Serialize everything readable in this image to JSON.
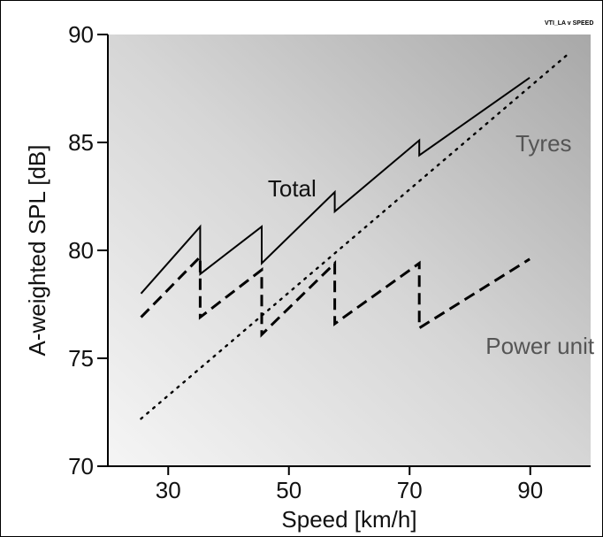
{
  "chart_data": {
    "type": "line",
    "tag": "VTI_LA v SPEED",
    "xlabel": "Speed [km/h]",
    "ylabel": "A-weighted SPL  [dB]",
    "xlim": [
      20,
      100
    ],
    "ylim": [
      70,
      90
    ],
    "x_ticks": [
      30,
      50,
      70,
      90
    ],
    "y_ticks": [
      70,
      75,
      80,
      85,
      90
    ],
    "grid": false,
    "series": [
      {
        "name": "Total",
        "style": "solid",
        "points": [
          [
            25.5,
            78.0
          ],
          [
            35.3,
            81.1
          ],
          [
            35.3,
            78.9
          ],
          [
            45.5,
            81.1
          ],
          [
            45.5,
            79.4
          ],
          [
            57.6,
            82.7
          ],
          [
            57.6,
            81.8
          ],
          [
            71.6,
            85.1
          ],
          [
            71.6,
            84.4
          ],
          [
            89.9,
            88.0
          ]
        ]
      },
      {
        "name": "Tyres",
        "style": "dotted",
        "points": [
          [
            25.5,
            72.2
          ],
          [
            96.3,
            89.1
          ]
        ]
      },
      {
        "name": "Power unit",
        "style": "dashed",
        "points": [
          [
            25.5,
            76.9
          ],
          [
            35.3,
            79.7
          ],
          [
            35.3,
            76.9
          ],
          [
            45.5,
            79.1
          ],
          [
            45.5,
            76.1
          ],
          [
            57.6,
            79.4
          ],
          [
            57.6,
            76.6
          ],
          [
            71.6,
            79.4
          ],
          [
            71.6,
            76.4
          ],
          [
            89.9,
            79.6
          ]
        ]
      }
    ],
    "annotations": [
      {
        "text": "Total",
        "x": 46.5,
        "y": 82.5,
        "anchor": "start"
      },
      {
        "text": "Tyres",
        "x": 92.2,
        "y": 84.6,
        "anchor": "middle"
      },
      {
        "text": "Power unit",
        "x": 91.6,
        "y": 75.2,
        "anchor": "middle"
      }
    ]
  }
}
